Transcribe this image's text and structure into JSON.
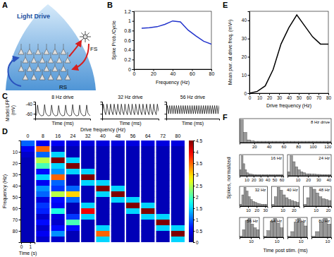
{
  "diagram": {
    "panel": "A",
    "title": "Light Drive",
    "nodes": [
      {
        "label": "RS"
      },
      {
        "label": "FS"
      }
    ]
  },
  "chart_data": [
    {
      "panel": "B",
      "type": "line",
      "xlabel": "Frequency (Hz)",
      "ylabel": "Spike Prob./Cycle",
      "x": [
        8,
        16,
        24,
        32,
        40,
        48,
        56,
        64,
        72,
        80
      ],
      "values": [
        0.85,
        0.86,
        0.88,
        0.93,
        1.0,
        0.98,
        0.81,
        0.69,
        0.58,
        0.52
      ],
      "color": "#2233cc",
      "xlim": [
        0,
        80
      ],
      "xticks": [
        0,
        20,
        40,
        60,
        80
      ],
      "ylim": [
        0,
        1.2
      ],
      "yticks": [
        0,
        0.2,
        0.4,
        0.6,
        0.8,
        1,
        1.2
      ]
    },
    {
      "panel": "C",
      "type": "line",
      "xlabel": "Time (ms)",
      "ylabel": "Model LFP (mV)",
      "tick_labels": "y",
      "x": [
        0,
        10,
        20,
        30,
        40,
        50,
        60,
        70,
        80,
        90,
        100,
        110,
        120,
        130,
        140,
        150,
        160,
        170,
        180,
        190,
        200,
        210,
        220,
        230,
        240,
        250,
        260,
        270,
        280,
        290,
        300,
        310,
        320,
        330,
        340,
        350,
        360,
        370,
        380,
        390,
        400,
        410,
        420,
        430,
        440,
        450,
        460,
        470
      ],
      "xlim": [
        0,
        470
      ],
      "ylim": [
        -70,
        -35
      ],
      "yticks": [
        -60,
        -40
      ],
      "series": [
        {
          "name": "8 Hz drive",
          "color": "#000000",
          "values": [
            -64,
            -63,
            -42,
            -58,
            -62,
            -64,
            -64,
            -63,
            -41,
            -58,
            -62,
            -64,
            -64,
            -63,
            -42,
            -58,
            -62,
            -64,
            -64,
            -63,
            -43,
            -58,
            -62,
            -64,
            -64,
            -63,
            -42,
            -58,
            -62,
            -64,
            -64,
            -63,
            -41,
            -58,
            -62,
            -64,
            -64,
            -63,
            -42,
            -58,
            -62,
            -64,
            -64,
            -63,
            -42,
            -58,
            -62,
            -64
          ]
        },
        {
          "name": "32 Hz drive",
          "color": "#000000",
          "values": [
            -62,
            -40,
            -55,
            -62,
            -40,
            -55,
            -62,
            -40,
            -55,
            -62,
            -40,
            -55,
            -62,
            -40,
            -55,
            -62,
            -40,
            -55,
            -62,
            -40,
            -55,
            -62,
            -40,
            -55,
            -62,
            -40,
            -55,
            -62,
            -40,
            -55,
            -62,
            -40,
            -55,
            -62,
            -40,
            -55,
            -62,
            -40,
            -55,
            -62,
            -40,
            -55,
            -62,
            -40,
            -55,
            -62,
            -40,
            -55
          ]
        },
        {
          "name": "56 Hz drive",
          "color": "#000000",
          "values": [
            -60,
            -43,
            -60,
            -43,
            -60,
            -43,
            -60,
            -43,
            -60,
            -43,
            -60,
            -43,
            -60,
            -43,
            -60,
            -43,
            -60,
            -43,
            -60,
            -43,
            -60,
            -43,
            -60,
            -43,
            -60,
            -43,
            -60,
            -43,
            -60,
            -43,
            -60,
            -43,
            -60,
            -43,
            -60,
            -43,
            -60,
            -43,
            -60,
            -43,
            -60,
            -43,
            -60,
            -43,
            -60,
            -43,
            -60,
            -43
          ]
        }
      ]
    },
    {
      "panel": "D",
      "type": "heatmap",
      "title": "Drive frequency (Hz)",
      "xlabel": "Time (s)",
      "ylabel": "Frequency (Hz)",
      "columns": [
        0,
        8,
        16,
        24,
        32,
        40,
        48,
        56,
        64,
        72,
        80
      ],
      "xlim": [
        0,
        1.5
      ],
      "xticks": [
        0,
        1
      ],
      "ylim": [
        0,
        90
      ],
      "yticks": [
        10,
        20,
        30,
        40,
        50,
        60,
        70,
        80
      ],
      "bins": [
        0,
        5,
        10,
        15,
        20,
        25,
        30,
        35,
        40,
        45,
        50,
        55,
        60,
        65,
        70,
        75,
        80,
        85,
        90
      ],
      "cells": [
        [
          1.0,
          0.5,
          0.3,
          0.2,
          0.2,
          0.2,
          0.2,
          0.2,
          0.2,
          0.2,
          0.2,
          0.2,
          0.2,
          0.2,
          0.2,
          0.2,
          0.2,
          0.2
        ],
        [
          0.5,
          3.5,
          1.0,
          2.5,
          2.0,
          0.6,
          1.5,
          0.5,
          1.2,
          1.0,
          0.4,
          0.8,
          0.7,
          0.3,
          0.6,
          0.3,
          0.5,
          0.3
        ],
        [
          0.5,
          0.2,
          1.5,
          4.5,
          1.5,
          1.2,
          3.5,
          1.0,
          0.8,
          2.5,
          0.6,
          0.5,
          1.8,
          0.4,
          0.3,
          0.6,
          1.2,
          0.3
        ],
        [
          0.4,
          0.2,
          0.2,
          1.5,
          4.5,
          1.5,
          0.2,
          0.2,
          1.0,
          3.0,
          1.0,
          0.2,
          0.2,
          0.8,
          2.0,
          0.6,
          0.2,
          0.2
        ],
        [
          0.4,
          0.2,
          0.2,
          0.2,
          0.2,
          1.5,
          4.5,
          1.5,
          0.2,
          0.2,
          0.2,
          1.5,
          4.0,
          1.5,
          0.2,
          0.2,
          0.2,
          0.2
        ],
        [
          0.4,
          0.2,
          0.2,
          0.2,
          0.2,
          0.2,
          0.2,
          1.5,
          4.5,
          1.5,
          0.2,
          0.2,
          0.2,
          0.2,
          0.2,
          1.5,
          3.5,
          1.5
        ],
        [
          0.4,
          0.2,
          0.2,
          0.2,
          0.2,
          0.2,
          0.2,
          0.2,
          1.5,
          4.5,
          1.5,
          0.2,
          0.2,
          0.2,
          0.2,
          0.2,
          0.2,
          0.2
        ],
        [
          0.4,
          0.2,
          0.2,
          0.2,
          0.2,
          0.2,
          0.2,
          0.2,
          0.2,
          0.2,
          1.5,
          4.5,
          1.5,
          0.2,
          0.2,
          0.2,
          0.2,
          0.2
        ],
        [
          0.4,
          0.2,
          0.2,
          0.2,
          0.2,
          0.2,
          0.2,
          0.2,
          0.2,
          0.2,
          0.2,
          1.5,
          4.5,
          1.5,
          0.2,
          0.2,
          0.2,
          0.2
        ],
        [
          0.4,
          0.2,
          0.2,
          0.2,
          0.2,
          0.2,
          0.2,
          0.2,
          0.2,
          0.2,
          0.2,
          0.2,
          0.2,
          1.5,
          4.5,
          1.5,
          0.2,
          0.2
        ],
        [
          0.4,
          0.2,
          0.2,
          0.2,
          0.2,
          0.2,
          0.2,
          0.2,
          0.2,
          0.2,
          0.2,
          0.2,
          0.2,
          0.2,
          0.2,
          1.5,
          4.5,
          1.5
        ]
      ],
      "colorbar": {
        "range": [
          0,
          4.5
        ],
        "ticks": [
          0,
          0.5,
          1,
          1.5,
          2,
          2.5,
          3,
          3.5,
          4,
          4.5
        ]
      }
    },
    {
      "panel": "E",
      "type": "line",
      "xlabel": "Drive frequency (Hz)",
      "ylabel": "Mean pwr. at drive freq. (mV²)",
      "x": [
        0,
        8,
        16,
        24,
        32,
        40,
        48,
        56,
        64,
        72,
        80
      ],
      "values": [
        0,
        1,
        4,
        13,
        27,
        36,
        43,
        37,
        31,
        27,
        27
      ],
      "color": "#000000",
      "xlim": [
        0,
        80
      ],
      "xticks": [
        0,
        10,
        20,
        30,
        40,
        50,
        60,
        70,
        80
      ],
      "ylim": [
        0,
        45
      ],
      "yticks": [
        0,
        10,
        20,
        30,
        40
      ]
    },
    {
      "panel": "F",
      "type": "histogram",
      "xlabel": "Time post stim. (ms)",
      "ylabel": "Spikes, normalized",
      "tick_labels": "x",
      "color": "#999999",
      "ylim": [
        0,
        1.05
      ],
      "panels": [
        {
          "title": "8 Hz drive",
          "xlim": [
            0,
            125
          ],
          "xticks": [
            20,
            40,
            60,
            80,
            100,
            120
          ],
          "bins": [
            0,
            5,
            10,
            15,
            20,
            25,
            30,
            35,
            40,
            45,
            50,
            55,
            60,
            65,
            70,
            75,
            80,
            85,
            90,
            95,
            100,
            105,
            110,
            115,
            120,
            125
          ],
          "counts": [
            1.0,
            0.45,
            0.12,
            0.08,
            0.06,
            0.06,
            0.06,
            0.06,
            0.06,
            0.06,
            0.06,
            0.06,
            0.06,
            0.06,
            0.06,
            0.06,
            0.06,
            0.06,
            0.06,
            0.06,
            0.06,
            0.06,
            0.06,
            0.06,
            0.06
          ]
        },
        {
          "title": "16 Hz",
          "xlim": [
            0,
            62.5
          ],
          "xticks": [
            10,
            20,
            30,
            40,
            50,
            60
          ],
          "bins": [
            0,
            2.5,
            5,
            7.5,
            10,
            12.5,
            15,
            17.5,
            20,
            22.5,
            25,
            27.5,
            30,
            32.5,
            35,
            37.5,
            40,
            42.5,
            45,
            47.5,
            50,
            52.5,
            55,
            57.5,
            60,
            62.5
          ],
          "counts": [
            0.3,
            1.0,
            0.6,
            0.3,
            0.15,
            0.1,
            0.08,
            0.07,
            0.06,
            0.05,
            0.05,
            0.05,
            0.05,
            0.05,
            0.05,
            0.05,
            0.05,
            0.05,
            0.05,
            0.05,
            0.05,
            0.05,
            0.05,
            0.05,
            0.05
          ]
        },
        {
          "title": "24 Hz",
          "xlim": [
            0,
            42.5
          ],
          "xticks": [
            10,
            20,
            30,
            40
          ],
          "bins": [
            0,
            2.5,
            5,
            7.5,
            10,
            12.5,
            15,
            17.5,
            20,
            22.5,
            25,
            27.5,
            30,
            32.5,
            35,
            37.5,
            40,
            42.5
          ],
          "counts": [
            0.2,
            1.0,
            0.7,
            0.45,
            0.3,
            0.2,
            0.15,
            0.1,
            0.1,
            0.08,
            0.08,
            0.07,
            0.07,
            0.06,
            0.06,
            0.06,
            0.06
          ]
        },
        {
          "title": "32 Hz",
          "xlim": [
            0,
            32.5
          ],
          "xticks": [
            10,
            20,
            30
          ],
          "bins": [
            0,
            2.5,
            5,
            7.5,
            10,
            12.5,
            15,
            17.5,
            20,
            22.5,
            25,
            27.5,
            30,
            32.5
          ],
          "counts": [
            0.1,
            0.6,
            1.0,
            0.8,
            0.5,
            0.35,
            0.25,
            0.2,
            0.15,
            0.12,
            0.1,
            0.1,
            0.1
          ]
        },
        {
          "title": "40 Hz",
          "xlim": [
            0,
            25
          ],
          "xticks": [
            10,
            20
          ],
          "bins": [
            0,
            2.5,
            5,
            7.5,
            10,
            12.5,
            15,
            17.5,
            20,
            22.5,
            25
          ],
          "counts": [
            0.1,
            0.5,
            1.0,
            0.85,
            0.6,
            0.45,
            0.35,
            0.3,
            0.25,
            0.2
          ]
        },
        {
          "title": "48 Hz",
          "xlim": [
            0,
            22.5
          ],
          "xticks": [
            10,
            20
          ],
          "bins": [
            0,
            2.5,
            5,
            7.5,
            10,
            12.5,
            15,
            17.5,
            20,
            22.5
          ],
          "counts": [
            0.1,
            0.45,
            1.0,
            0.9,
            0.7,
            0.5,
            0.4,
            0.35,
            0.3
          ]
        },
        {
          "title": "56 Hz",
          "xlim": [
            0,
            17.5
          ],
          "xticks": [
            10
          ],
          "bins": [
            0,
            2.5,
            5,
            7.5,
            10,
            12.5,
            15,
            17.5
          ],
          "counts": [
            0.05,
            0.4,
            0.9,
            1.0,
            0.7,
            0.5,
            0.4
          ]
        },
        {
          "title": "64 Hz",
          "xlim": [
            0,
            15
          ],
          "xticks": [
            10
          ],
          "bins": [
            0,
            2.5,
            5,
            7.5,
            10,
            12.5,
            15
          ],
          "counts": [
            0.05,
            0.35,
            0.85,
            1.0,
            0.75,
            0.5
          ]
        },
        {
          "title": "72 Hz",
          "xlim": [
            0,
            15
          ],
          "xticks": [
            10
          ],
          "bins": [
            0,
            2.5,
            5,
            7.5,
            10,
            12.5,
            15
          ],
          "counts": [
            0.05,
            0.3,
            0.8,
            1.0,
            0.8,
            0.6
          ]
        },
        {
          "title": "80 Hz",
          "xlim": [
            0,
            12.5
          ],
          "xticks": [
            10
          ],
          "bins": [
            0,
            2.5,
            5,
            7.5,
            10,
            12.5
          ],
          "counts": [
            0.05,
            0.3,
            0.8,
            1.0,
            0.7
          ]
        }
      ]
    }
  ]
}
